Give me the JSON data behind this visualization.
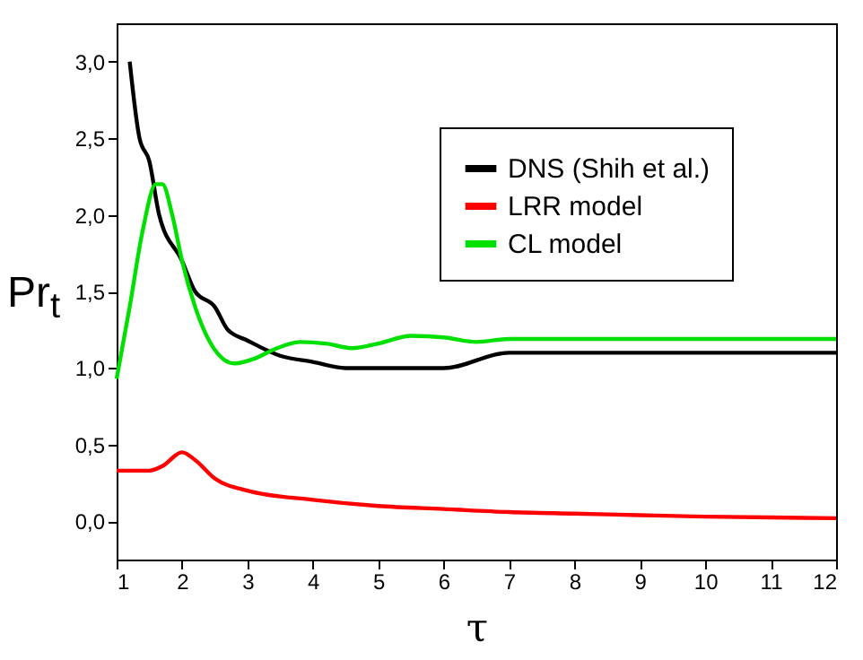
{
  "chart_data": {
    "type": "line",
    "xlabel": "τ",
    "ylabel": "Pr$_{t}$",
    "xlim": [
      1,
      12
    ],
    "ylim": [
      -0.25,
      3.25
    ],
    "xticks": [
      1,
      2,
      3,
      4,
      5,
      6,
      7,
      8,
      9,
      10,
      11,
      12
    ],
    "yticks": [
      {
        "value": 0,
        "label": "0,0"
      },
      {
        "value": 0.5,
        "label": "0,5"
      },
      {
        "value": 1,
        "label": "1,0"
      },
      {
        "value": 1.5,
        "label": "1,5"
      },
      {
        "value": 2,
        "label": "2,0"
      },
      {
        "value": 2.5,
        "label": "2,5"
      },
      {
        "value": 3,
        "label": "3,0"
      }
    ],
    "grid": false,
    "legend": "top right",
    "series": [
      {
        "name": "DNS (Shih et al.)",
        "color": "#000000",
        "x": [
          1.2,
          1.35,
          1.5,
          1.65,
          2.0,
          2.2,
          2.5,
          2.7,
          3,
          3.5,
          4,
          4.5,
          6,
          7,
          12
        ],
        "values": [
          3.0,
          2.5,
          2.35,
          2.0,
          1.7,
          1.5,
          1.4,
          1.25,
          1.18,
          1.08,
          1.04,
          1.0,
          1.0,
          1.1,
          1.1
        ]
      },
      {
        "name": "LRR model",
        "color": "#ff0000",
        "x": [
          1,
          1.5,
          1.7,
          2.0,
          2.2,
          2.5,
          3,
          4,
          5,
          6,
          7,
          8,
          9,
          10,
          11,
          12
        ],
        "values": [
          0.33,
          0.33,
          0.36,
          0.45,
          0.4,
          0.28,
          0.2,
          0.14,
          0.1,
          0.08,
          0.06,
          0.05,
          0.04,
          0.03,
          0.025,
          0.02
        ]
      },
      {
        "name": "CL model",
        "color": "#00e000",
        "x": [
          1,
          1.2,
          1.4,
          1.6,
          1.7,
          1.85,
          2.0,
          2.2,
          2.5,
          2.8,
          3.1,
          3.4,
          3.8,
          4.2,
          4.6,
          5.0,
          5.5,
          6.0,
          6.5,
          7,
          12
        ],
        "values": [
          0.93,
          1.4,
          1.9,
          2.2,
          2.2,
          2.0,
          1.7,
          1.4,
          1.12,
          1.03,
          1.06,
          1.12,
          1.17,
          1.16,
          1.13,
          1.16,
          1.21,
          1.2,
          1.17,
          1.19,
          1.19
        ]
      }
    ]
  }
}
